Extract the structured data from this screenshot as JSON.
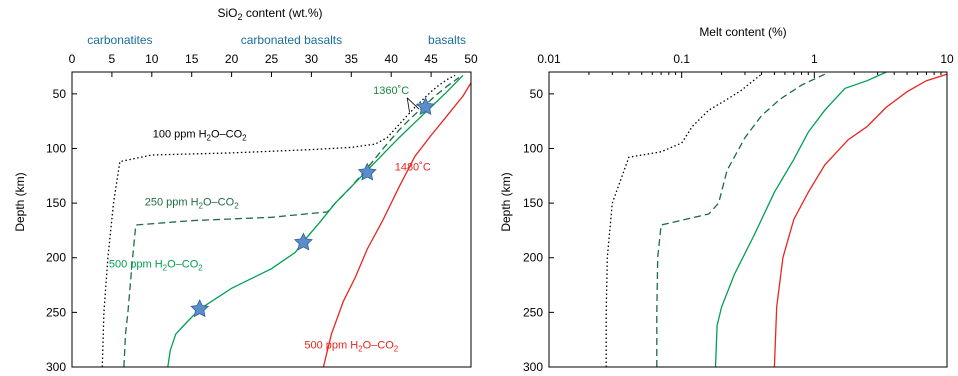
{
  "chart_data": [
    {
      "type": "line",
      "panel": "left",
      "xlabel_parts": [
        "SiO",
        "2",
        " content (wt.%)"
      ],
      "ylabel": "Depth (km)",
      "xlim": [
        0,
        50
      ],
      "ylim": [
        300,
        30
      ],
      "x_ticks": [
        0,
        5,
        10,
        15,
        20,
        25,
        30,
        35,
        40,
        45,
        50
      ],
      "y_ticks": [
        50,
        100,
        150,
        200,
        250,
        300
      ],
      "x_axis_position": "top",
      "group_labels": [
        {
          "text": "carbonatites",
          "at_x": 6
        },
        {
          "text": "carbonated basalts",
          "at_x": 27.5
        },
        {
          "text": "basalts",
          "at_x": 47
        }
      ],
      "series": [
        {
          "key": "h100",
          "color": "#000000",
          "dash": "dotted",
          "x": [
            3.8,
            4.0,
            4.5,
            5.2,
            6.0,
            10,
            20,
            30,
            35,
            38,
            39.5,
            41,
            42,
            43,
            44,
            45,
            46,
            47,
            48
          ],
          "y": [
            300,
            250,
            200,
            150,
            112,
            106,
            104,
            101,
            99,
            96,
            90,
            78,
            70,
            62,
            55,
            48,
            42,
            37,
            33
          ]
        },
        {
          "key": "h250",
          "color": "#1f6b43",
          "dash": "dashed",
          "x": [
            6.5,
            6.7,
            7.0,
            7.6,
            8.0,
            15,
            25,
            32,
            33,
            35,
            37,
            39,
            41,
            42.5,
            44,
            45.5,
            47,
            48.5
          ],
          "y": [
            300,
            270,
            250,
            200,
            170,
            166,
            163,
            158,
            150,
            135,
            118,
            100,
            83,
            72,
            62,
            52,
            43,
            35
          ]
        },
        {
          "key": "h500g",
          "color": "#00a050",
          "dash": "solid",
          "x": [
            12,
            12.3,
            13.0,
            14.0,
            16.0,
            20,
            25,
            28,
            29,
            31,
            33,
            35,
            37,
            39,
            41,
            43,
            45,
            47,
            49
          ],
          "y": [
            300,
            285,
            270,
            262,
            247,
            228,
            210,
            195,
            185,
            168,
            150,
            135,
            120,
            105,
            90,
            76,
            62,
            48,
            33
          ]
        },
        {
          "key": "h500r",
          "color": "#e8251f",
          "dash": "solid",
          "x": [
            31.5,
            32.5,
            34,
            35.5,
            37,
            39,
            41,
            43,
            45,
            47,
            49,
            50
          ],
          "y": [
            300,
            270,
            240,
            218,
            192,
            165,
            135,
            107,
            88,
            70,
            52,
            40
          ]
        }
      ],
      "stars": [
        {
          "x": 44.3,
          "y": 62
        },
        {
          "x": 37,
          "y": 122
        },
        {
          "x": 29,
          "y": 186
        },
        {
          "x": 16,
          "y": 247
        }
      ],
      "annotations": [
        {
          "text": "1360˚C",
          "color": "#1a8a3c",
          "at": [
            40,
            50
          ]
        },
        {
          "text": "1480˚C",
          "color": "#e8251f",
          "at": [
            42.7,
            120
          ]
        },
        {
          "parts": [
            "100 ppm H",
            "2",
            "O–CO",
            "2"
          ],
          "color": "#000000",
          "at": [
            16,
            90
          ]
        },
        {
          "parts": [
            "250 ppm H",
            "2",
            "O–CO",
            "2"
          ],
          "color": "#1f6b43",
          "at": [
            15,
            152
          ]
        },
        {
          "parts": [
            "500 ppm H",
            "2",
            "O–CO",
            "2"
          ],
          "color": "#00a050",
          "at": [
            10.5,
            209
          ]
        },
        {
          "parts": [
            "500 ppm H",
            "2",
            "O–CO",
            "2"
          ],
          "color": "#e8251f",
          "at": [
            35,
            283
          ]
        }
      ]
    },
    {
      "type": "line",
      "panel": "right",
      "xlabel": "Melt content (%)",
      "ylabel": "Depth (km)",
      "xscale": "log",
      "xlim": [
        0.01,
        10
      ],
      "ylim": [
        300,
        30
      ],
      "x_tick_values": [
        0.01,
        0.1,
        1,
        10
      ],
      "x_tick_labels": [
        "0.01",
        "0.1",
        "1",
        "10"
      ],
      "y_ticks": [
        50,
        100,
        150,
        200,
        250,
        300
      ],
      "x_axis_position": "top",
      "series": [
        {
          "key": "h100",
          "color": "#000000",
          "dash": "dotted",
          "x": [
            0.027,
            0.027,
            0.0275,
            0.03,
            0.04,
            0.07,
            0.1,
            0.12,
            0.16,
            0.22,
            0.28,
            0.33,
            0.4
          ],
          "y": [
            300,
            250,
            200,
            150,
            108,
            103,
            95,
            80,
            65,
            55,
            47,
            40,
            32
          ]
        },
        {
          "key": "h250",
          "color": "#1f6b43",
          "dash": "dashed",
          "x": [
            0.065,
            0.065,
            0.066,
            0.07,
            0.16,
            0.19,
            0.22,
            0.3,
            0.4,
            0.55,
            0.8,
            1.2
          ],
          "y": [
            300,
            250,
            200,
            170,
            160,
            150,
            120,
            90,
            70,
            55,
            42,
            32
          ]
        },
        {
          "key": "h500g",
          "color": "#00a050",
          "dash": "solid",
          "x": [
            0.18,
            0.185,
            0.2,
            0.25,
            0.35,
            0.5,
            0.7,
            0.9,
            1.2,
            1.7,
            2.5,
            3.5
          ],
          "y": [
            300,
            262,
            245,
            215,
            180,
            140,
            110,
            85,
            65,
            45,
            38,
            30
          ]
        },
        {
          "key": "h500r",
          "color": "#e8251f",
          "dash": "solid",
          "x": [
            0.5,
            0.52,
            0.58,
            0.7,
            0.9,
            1.2,
            1.8,
            2.5,
            3.5,
            5,
            7,
            10
          ],
          "y": [
            300,
            245,
            200,
            165,
            140,
            115,
            92,
            80,
            62,
            48,
            38,
            32
          ]
        }
      ]
    }
  ]
}
